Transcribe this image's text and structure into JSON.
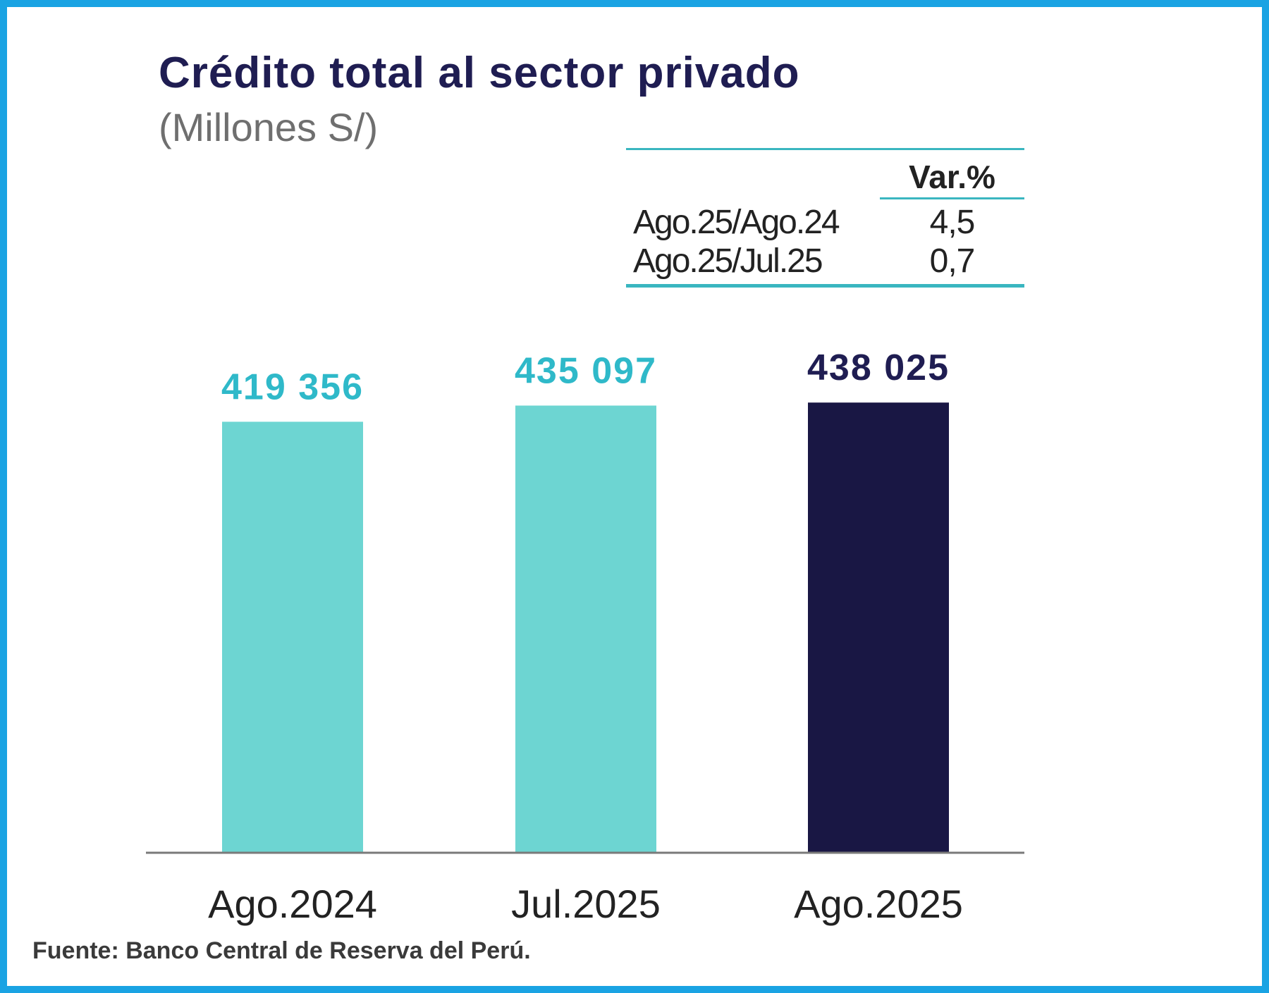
{
  "chart_data": {
    "type": "bar",
    "title": "Crédito total al sector privado",
    "subtitle": "(Millones S/)",
    "categories": [
      "Ago.2024",
      "Jul.2025",
      "Ago.2025"
    ],
    "values": [
      419356,
      435097,
      438025
    ],
    "data_labels": [
      "419 356",
      "435 097",
      "438 025"
    ],
    "bar_colors": [
      "#6dd5d2",
      "#6dd5d2",
      "#191744"
    ],
    "label_colors": [
      "#2fb9c9",
      "#2fb9c9",
      "#1f1d52"
    ],
    "axis_color": "#7a7a7a",
    "ylim": [
      0,
      480000
    ],
    "grid": false,
    "legend": "none"
  },
  "variation_table": {
    "header": "Var.%",
    "rows": [
      {
        "label": "Ago.25/Ago.24",
        "value": "4,5"
      },
      {
        "label": "Ago.25/Jul.25",
        "value": "0,7"
      }
    ]
  },
  "source": "Fuente: Banco Central de Reserva del Perú.",
  "colors": {
    "border": "#1aa3e3",
    "title": "#1f1d52",
    "rule": "#3ab6c0"
  }
}
